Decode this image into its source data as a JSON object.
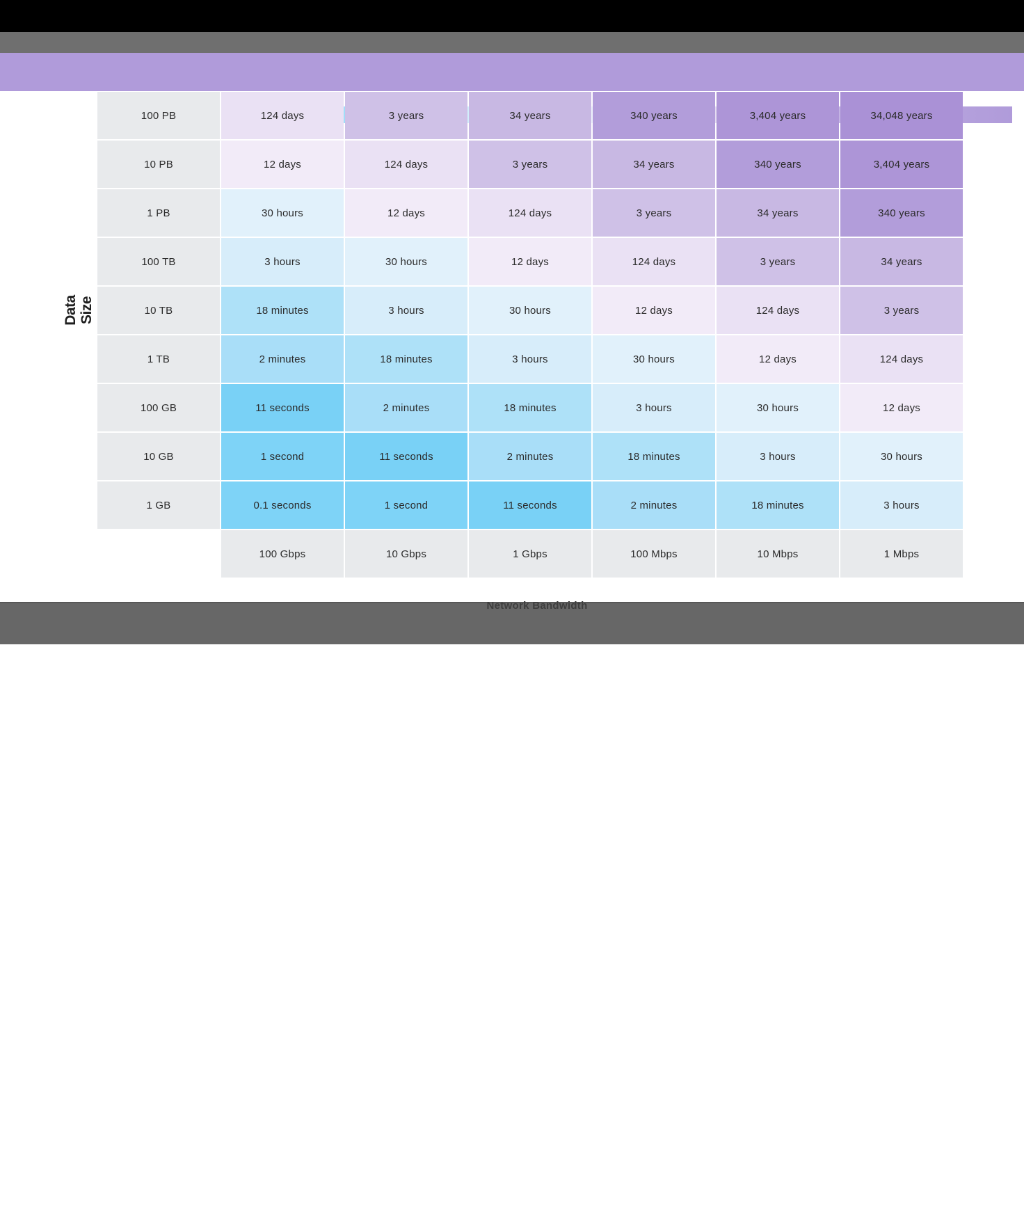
{
  "chart_data": {
    "type": "heatmap",
    "ylabel": "Data Size",
    "xlabel": "Network Bandwidth",
    "row_labels": [
      "100 PB",
      "10 PB",
      "1 PB",
      "100 TB",
      "10 TB",
      "1 TB",
      "100 GB",
      "10 GB",
      "1 GB"
    ],
    "column_labels": [
      "100 Gbps",
      "10 Gbps",
      "1 Gbps",
      "100 Mbps",
      "10 Mbps",
      "1 Mbps"
    ],
    "cells": [
      [
        "124 days",
        "3 years",
        "34 years",
        "340 years",
        "3,404 years",
        "34,048 years"
      ],
      [
        "12 days",
        "124 days",
        "3 years",
        "34 years",
        "340 years",
        "3,404 years"
      ],
      [
        "30 hours",
        "12 days",
        "124 days",
        "3 years",
        "34 years",
        "340 years"
      ],
      [
        "3 hours",
        "30 hours",
        "12 days",
        "124 days",
        "3 years",
        "34 years"
      ],
      [
        "18 minutes",
        "3 hours",
        "30 hours",
        "12 days",
        "124 days",
        "3 years"
      ],
      [
        "2 minutes",
        "18 minutes",
        "3 hours",
        "30 hours",
        "12 days",
        "124 days"
      ],
      [
        "11 seconds",
        "2 minutes",
        "18 minutes",
        "3 hours",
        "30 hours",
        "12 days"
      ],
      [
        "1 second",
        "11 seconds",
        "2 minutes",
        "18 minutes",
        "3 hours",
        "30 hours"
      ],
      [
        "0.1 seconds",
        "1 second",
        "11 seconds",
        "2 minutes",
        "18 minutes",
        "3 hours"
      ]
    ],
    "value_colors": {
      "0.1 seconds": "#7ed3f7",
      "1 second": "#7ed3f7",
      "11 seconds": "#79d1f6",
      "2 minutes": "#a9def8",
      "18 minutes": "#aee1f8",
      "3 hours": "#d7edfa",
      "30 hours": "#e1f1fb",
      "12 days": "#f2ebf8",
      "124 days": "#eae1f4",
      "3 years": "#cfc1e7",
      "34 years": "#c8b8e3",
      "340 years": "#b29dda",
      "3,404 years": "#ad95d7",
      "34,048 years": "#aa91d6"
    },
    "label_cell_color": "#e8eaec",
    "legend_gradient_stops": [
      "#68cdf5",
      "#9bdcf8",
      "#cdeefb",
      "#eef6fd",
      "#f3f0f9",
      "#cfc0e7",
      "#b8a6de",
      "#b09bda"
    ],
    "band_color": "#b09bda",
    "legend_position": "top"
  },
  "icons": {
    "header_icon": "external-link-icon"
  }
}
